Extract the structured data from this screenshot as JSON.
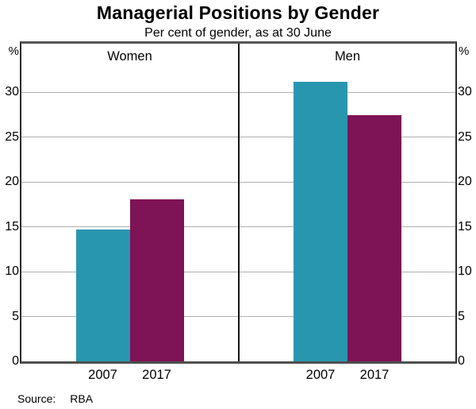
{
  "chart_data": {
    "type": "bar",
    "title": "Managerial Positions by Gender",
    "subtitle": "Per cent of gender, as at 30 June",
    "axis_unit": "%",
    "categories": [
      "2007",
      "2017"
    ],
    "panels": [
      {
        "label": "Women",
        "values": [
          14.7,
          18.1
        ]
      },
      {
        "label": "Men",
        "values": [
          31.2,
          27.4
        ]
      }
    ],
    "bar_colors": [
      "#2996AF",
      "#7E1355"
    ],
    "ylim": [
      0,
      35.4
    ],
    "yticks": [
      0,
      5,
      10,
      15,
      20,
      25,
      30
    ],
    "grid": true,
    "gridline_color": "#b0b0b0",
    "legend_position": "none",
    "source_label": "Source:",
    "source_value": "RBA"
  }
}
